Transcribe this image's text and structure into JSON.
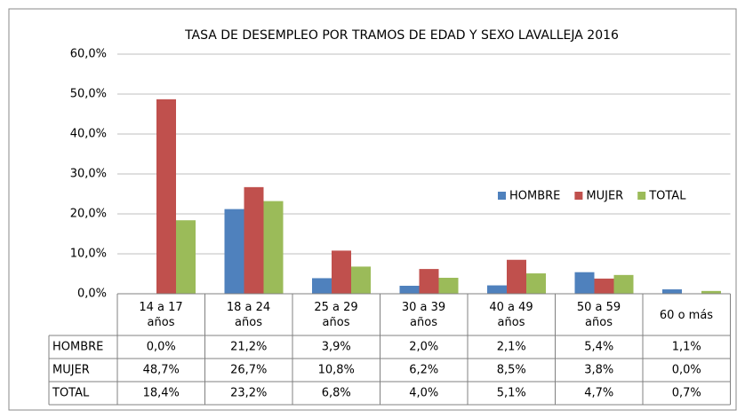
{
  "chart_data": {
    "type": "bar",
    "title": "TASA DE DESEMPLEO POR TRAMOS DE EDAD Y SEXO LAVALLEJA 2016",
    "categories": [
      "14 a 17 años",
      "18 a 24 años",
      "25 a 29 años",
      "30 a 39 años",
      "40 a 49 años",
      "50 a 59 años",
      "60 o más"
    ],
    "series": [
      {
        "name": "HOMBRE",
        "color": "#4f81bd",
        "values": [
          0.0,
          21.2,
          3.9,
          2.0,
          2.1,
          5.4,
          1.1
        ],
        "value_labels": [
          "0,0%",
          "21,2%",
          "3,9%",
          "2,0%",
          "2,1%",
          "5,4%",
          "1,1%"
        ]
      },
      {
        "name": "MUJER",
        "color": "#c0504d",
        "values": [
          48.7,
          26.7,
          10.8,
          6.2,
          8.5,
          3.8,
          0.0
        ],
        "value_labels": [
          "48,7%",
          "26,7%",
          "10,8%",
          "6,2%",
          "8,5%",
          "3,8%",
          "0,0%"
        ]
      },
      {
        "name": "TOTAL",
        "color": "#9bbb59",
        "values": [
          18.4,
          23.2,
          6.8,
          4.0,
          5.1,
          4.7,
          0.7
        ],
        "value_labels": [
          "18,4%",
          "23,2%",
          "6,8%",
          "4,0%",
          "5,1%",
          "4,7%",
          "0,7%"
        ]
      }
    ],
    "ylim": [
      0,
      60
    ],
    "yticks": [
      {
        "value": 0,
        "label": "0,0%"
      },
      {
        "value": 10,
        "label": "10,0%"
      },
      {
        "value": 20,
        "label": "20,0%"
      },
      {
        "value": 30,
        "label": "30,0%"
      },
      {
        "value": 40,
        "label": "40,0%"
      },
      {
        "value": 50,
        "label": "50,0%"
      },
      {
        "value": 60,
        "label": "60,0%"
      }
    ],
    "grid": true,
    "legend": "right"
  }
}
